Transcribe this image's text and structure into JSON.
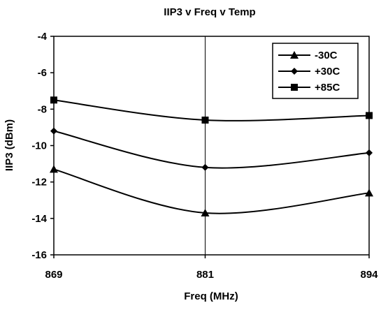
{
  "chart_data": {
    "type": "line",
    "title": "IIP3 v Freq v Temp",
    "xlabel": "Freq (MHz)",
    "ylabel": "IIP3 (dBm)",
    "x": [
      869,
      881,
      894
    ],
    "x_tick_labels": [
      "869",
      "881",
      "894"
    ],
    "y_tick_labels": [
      "-4",
      "-6",
      "-8",
      "-10",
      "-12",
      "-14",
      "-16"
    ],
    "ylim": [
      -16,
      -4
    ],
    "y_ticks": [
      -4,
      -6,
      -8,
      -10,
      -12,
      -14,
      -16
    ],
    "grid": "vertical lines at x ticks",
    "legend_position": "top-right",
    "series": [
      {
        "name": "-30C",
        "marker": "triangle",
        "values": [
          -11.3,
          -13.7,
          -12.6
        ]
      },
      {
        "name": "+30C",
        "marker": "diamond",
        "values": [
          -9.2,
          -11.2,
          -10.4
        ]
      },
      {
        "name": "+85C",
        "marker": "square",
        "values": [
          -7.5,
          -8.6,
          -8.35
        ]
      }
    ],
    "colors": {
      "line": "#000000",
      "background": "#ffffff"
    }
  }
}
